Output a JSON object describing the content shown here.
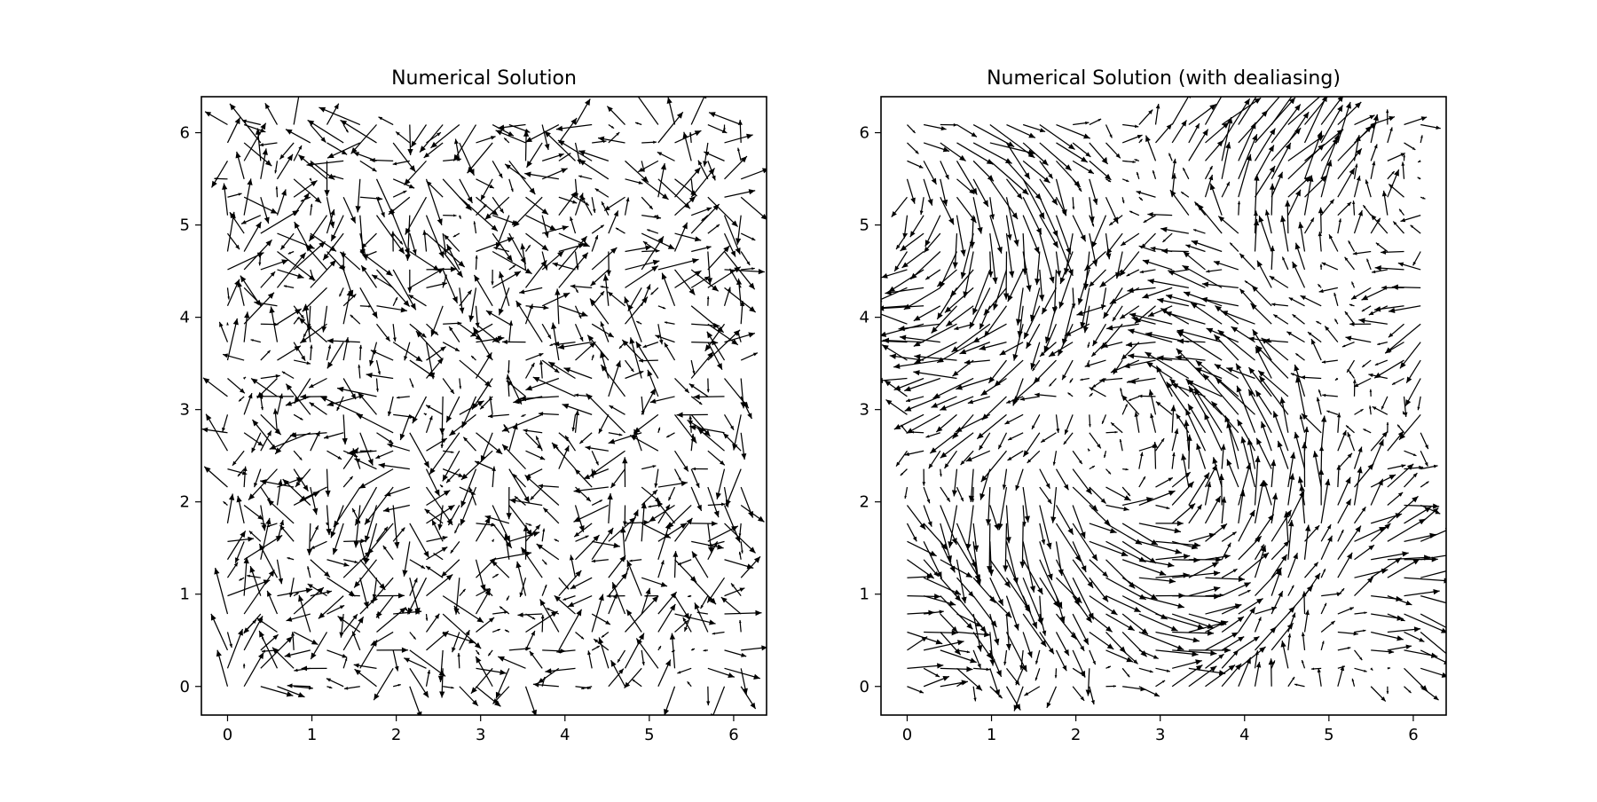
{
  "chart_data": [
    {
      "type": "quiver",
      "title": "Numerical Solution",
      "xlim": [
        -0.31,
        6.39
      ],
      "ylim": [
        -0.31,
        6.39
      ],
      "xticks": [
        0,
        1,
        2,
        3,
        4,
        5,
        6
      ],
      "yticks": [
        0,
        1,
        2,
        3,
        4,
        5,
        6
      ],
      "xlabel": "",
      "ylabel": "",
      "grid": false,
      "field": {
        "grid_size": 32,
        "x_range": [
          0,
          6.087
        ],
        "y_range": [
          0,
          6.087
        ],
        "u": "noisy random vector field sampled on a 32x32 grid, amplitudes roughly -0.7 to 0.7",
        "v": "noisy random vector field sampled on a 32x32 grid, amplitudes roughly -0.7 to 0.7",
        "seed": 7
      }
    },
    {
      "type": "quiver",
      "title": "Numerical Solution (with dealiasing)",
      "xlim": [
        -0.31,
        6.39
      ],
      "ylim": [
        -0.31,
        6.39
      ],
      "xticks": [
        0,
        1,
        2,
        3,
        4,
        5,
        6
      ],
      "yticks": [
        0,
        1,
        2,
        3,
        4,
        5,
        6
      ],
      "xlabel": "",
      "ylabel": "",
      "grid": false,
      "field": {
        "grid_size": 32,
        "x_range": [
          0,
          6.087
        ],
        "y_range": [
          0,
          6.087
        ],
        "u": "smoother vortex-like vector field sampled on a 32x32 grid, amplitudes roughly -0.8 to 0.8",
        "v": "smoother vortex-like vector field sampled on a 32x32 grid, amplitudes roughly -0.8 to 0.8",
        "seed": 19
      }
    }
  ]
}
